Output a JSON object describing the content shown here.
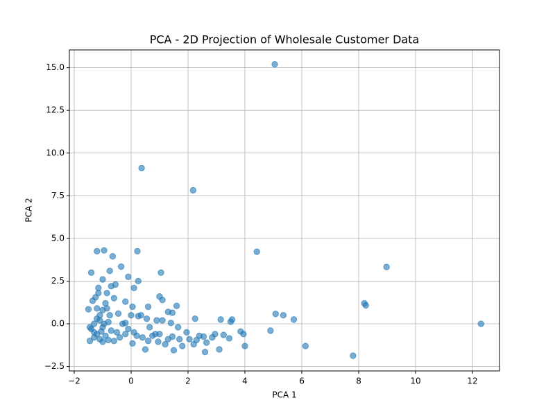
{
  "chart_data": {
    "type": "scatter",
    "title": "PCA - 2D Projection of Wholesale Customer Data",
    "x_label": "PCA 1",
    "y_label": "PCA 2",
    "color": "#1f77b4",
    "grid": true,
    "xlim": [
      -2.17,
      12.95
    ],
    "ylim": [
      -2.76,
      16.04
    ],
    "xticks": [
      {
        "value": -2,
        "label": "−2"
      },
      0,
      2,
      4,
      6,
      8,
      10,
      12
    ],
    "yticks": [
      {
        "value": -2.5,
        "label": "−2.5"
      },
      {
        "value": 0,
        "label": "0.0"
      },
      {
        "value": 2.5,
        "label": "2.5"
      },
      {
        "value": 5,
        "label": "5.0"
      },
      {
        "value": 7.5,
        "label": "7.5"
      },
      {
        "value": 10,
        "label": "10.0"
      },
      {
        "value": 12.5,
        "label": "12.5"
      },
      {
        "value": 15,
        "label": "15.0"
      }
    ],
    "x": [
      5.05,
      0.37,
      2.18,
      4.42,
      8.98,
      12.3,
      7.8,
      6.13,
      8.2,
      8.25,
      5.08,
      5.35,
      5.72,
      4.9,
      4.0,
      3.95,
      3.85,
      3.55,
      3.5,
      3.15,
      3.45,
      3.25,
      3.1,
      2.95,
      2.85,
      2.65,
      2.6,
      2.55,
      2.4,
      2.25,
      2.2,
      2.05,
      1.95,
      1.8,
      1.65,
      1.6,
      1.5,
      1.45,
      1.4,
      1.45,
      1.3,
      1.1,
      1.05,
      1.0,
      1.1,
      0.9,
      0.95,
      0.85,
      0.6,
      0.65,
      0.55,
      0.5,
      0.35,
      0.25,
      0.2,
      0.25,
      0.22,
      0.1,
      0.05,
      0.0,
      -0.1,
      -0.2,
      -0.2,
      -0.35,
      -0.45,
      -0.55,
      -0.6,
      -0.65,
      -0.7,
      -0.75,
      -0.95,
      -1.2,
      -1.4,
      -1.0,
      -1.15,
      -0.85,
      -0.9,
      -1.0,
      -1.1,
      -1.2,
      -1.3,
      -1.4,
      -1.45,
      -1.5,
      -1.35,
      -1.25,
      -1.2,
      -1.1,
      -1.0,
      -0.9,
      -0.8,
      -0.7,
      -0.6,
      -0.5,
      -0.4,
      -0.3,
      -0.2,
      -0.1,
      0.05,
      0.1,
      0.4,
      0.6,
      0.75,
      1.2,
      1.3,
      1.7,
      2.3,
      1.0,
      -1.3,
      -1.0,
      -0.8,
      -1.45,
      -1.2,
      -0.95,
      -1.05,
      -0.75,
      -1.15,
      -0.85,
      -1.3,
      -1.1
    ],
    "values": [
      15.2,
      9.12,
      7.82,
      4.22,
      3.33,
      0.0,
      -1.87,
      -1.3,
      1.2,
      1.08,
      0.58,
      0.5,
      0.25,
      -0.4,
      -1.3,
      -0.6,
      -0.45,
      0.25,
      0.12,
      0.25,
      -0.85,
      -0.65,
      -1.5,
      -0.6,
      -0.8,
      -1.1,
      -1.65,
      -0.75,
      -0.7,
      0.3,
      -1.2,
      -0.9,
      -0.5,
      -1.3,
      -0.2,
      1.05,
      -1.55,
      -0.75,
      0.05,
      0.65,
      0.7,
      1.4,
      3.0,
      1.6,
      0.2,
      0.2,
      -1.05,
      -0.6,
      1.0,
      -0.2,
      0.3,
      -1.5,
      0.5,
      0.45,
      -0.7,
      2.5,
      4.25,
      2.1,
      1.0,
      0.5,
      2.75,
      1.3,
      0.05,
      3.35,
      0.6,
      2.3,
      1.5,
      3.95,
      2.2,
      3.1,
      4.3,
      4.25,
      3.0,
      2.6,
      2.1,
      1.8,
      1.2,
      0.8,
      0.5,
      0.3,
      0.0,
      -0.3,
      -1.0,
      0.85,
      1.35,
      1.55,
      -0.6,
      -0.9,
      -0.2,
      -0.7,
      0.1,
      -0.4,
      -1.0,
      -0.5,
      -0.8,
      0.0,
      -0.6,
      -0.3,
      -1.15,
      -0.5,
      -0.8,
      -1.0,
      -0.7,
      -1.2,
      -0.9,
      -0.9,
      -0.95,
      -0.6,
      -0.8,
      -1.05,
      -0.95,
      -0.2,
      0.9,
      0.0,
      -0.45,
      0.5,
      1.8,
      0.9,
      -0.5,
      0.2
    ]
  }
}
